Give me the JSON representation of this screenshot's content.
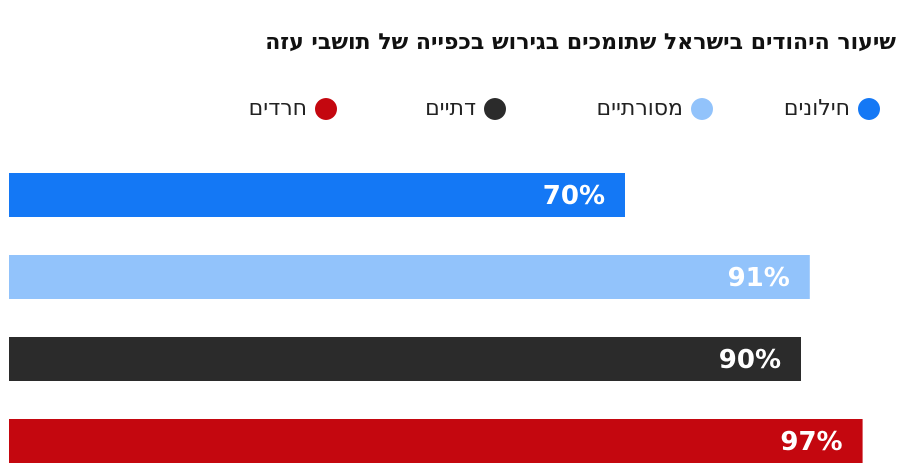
{
  "chart_data": {
    "type": "bar",
    "orientation": "horizontal",
    "title": "שיעור היהודים בישראל שתומכים בגירוש בכפייה של תושבי עזה",
    "categories": [
      "חילונים",
      "מסורתיים",
      "דתיים",
      "חרדים"
    ],
    "values": [
      70,
      91,
      90,
      97
    ],
    "value_labels": [
      "70%",
      "91%",
      "90%",
      "97%"
    ],
    "colors": [
      "#1478f5",
      "#92c3fb",
      "#2b2b2b",
      "#c4070f"
    ],
    "unit": "%",
    "xlim": [
      0,
      100
    ],
    "grid": false,
    "legend_position": "top"
  }
}
